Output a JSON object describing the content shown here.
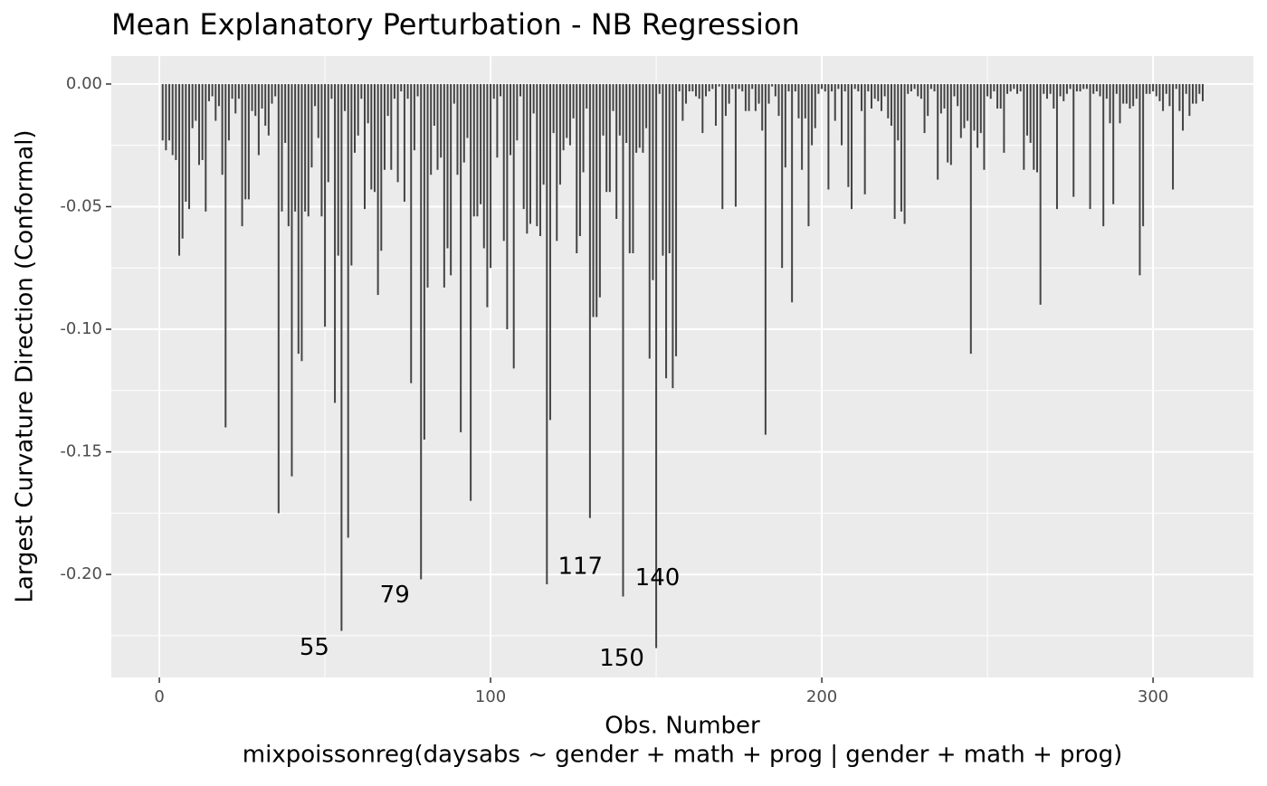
{
  "chart_data": {
    "type": "segment",
    "title": "Mean Explanatory Perturbation - NB Regression",
    "xlabel": "Obs. Number",
    "caption": "mixpoissonreg(daysabs ~ gender + math + prog | gender + math + prog)",
    "ylabel": "Largest Curvature Direction (Conformal)",
    "color": "#444444",
    "grid": true,
    "xlim": [
      -14.5,
      330.3
    ],
    "ylim": [
      -0.242,
      0.0114
    ],
    "xticks": [
      0,
      100,
      200,
      300
    ],
    "x_minor_breaks": [
      50,
      150,
      250
    ],
    "yticks": [
      {
        "value": 0,
        "label": "0.00"
      },
      {
        "value": -0.05,
        "label": "-0.05"
      },
      {
        "value": -0.1,
        "label": "-0.10"
      },
      {
        "value": -0.15,
        "label": "-0.15"
      },
      {
        "value": -0.2,
        "label": "-0.20"
      }
    ],
    "y_minor_breaks": [
      -0.025,
      -0.075,
      -0.125,
      -0.175,
      -0.225
    ],
    "annotations": [
      "55",
      "79",
      "117",
      "140",
      "150"
    ],
    "x": [
      1,
      2,
      3,
      4,
      5,
      6,
      7,
      8,
      9,
      10,
      11,
      12,
      13,
      14,
      15,
      16,
      17,
      18,
      19,
      20,
      21,
      22,
      23,
      24,
      25,
      26,
      27,
      28,
      29,
      30,
      31,
      32,
      33,
      34,
      35,
      36,
      37,
      38,
      39,
      40,
      41,
      42,
      43,
      44,
      45,
      46,
      47,
      48,
      49,
      50,
      51,
      52,
      53,
      54,
      55,
      56,
      57,
      58,
      59,
      60,
      61,
      62,
      63,
      64,
      65,
      66,
      67,
      68,
      69,
      70,
      71,
      72,
      73,
      74,
      75,
      76,
      77,
      78,
      79,
      80,
      81,
      82,
      83,
      84,
      85,
      86,
      87,
      88,
      89,
      90,
      91,
      92,
      93,
      94,
      95,
      96,
      97,
      98,
      99,
      100,
      101,
      102,
      103,
      104,
      105,
      106,
      107,
      108,
      109,
      110,
      111,
      112,
      113,
      114,
      115,
      116,
      117,
      118,
      119,
      120,
      121,
      122,
      123,
      124,
      125,
      126,
      127,
      128,
      129,
      130,
      131,
      132,
      133,
      134,
      135,
      136,
      137,
      138,
      139,
      140,
      141,
      142,
      143,
      144,
      145,
      146,
      147,
      148,
      149,
      150,
      151,
      152,
      153,
      154,
      155,
      156,
      157,
      158,
      159,
      160,
      161,
      162,
      163,
      164,
      165,
      166,
      167,
      168,
      169,
      170,
      171,
      172,
      173,
      174,
      175,
      176,
      177,
      178,
      179,
      180,
      181,
      182,
      183,
      184,
      185,
      186,
      187,
      188,
      189,
      190,
      191,
      192,
      193,
      194,
      195,
      196,
      197,
      198,
      199,
      200,
      201,
      202,
      203,
      204,
      205,
      206,
      207,
      208,
      209,
      210,
      211,
      212,
      213,
      214,
      215,
      216,
      217,
      218,
      219,
      220,
      221,
      222,
      223,
      224,
      225,
      226,
      227,
      228,
      229,
      230,
      231,
      232,
      233,
      234,
      235,
      236,
      237,
      238,
      239,
      240,
      241,
      242,
      243,
      244,
      245,
      246,
      247,
      248,
      249,
      250,
      251,
      252,
      253,
      254,
      255,
      256,
      257,
      258,
      259,
      260,
      261,
      262,
      263,
      264,
      265,
      266,
      267,
      268,
      269,
      270,
      271,
      272,
      273,
      274,
      275,
      276,
      277,
      278,
      279,
      280,
      281,
      282,
      283,
      284,
      285,
      286,
      287,
      288,
      289,
      290,
      291,
      292,
      293,
      294,
      295,
      296,
      297,
      298,
      299,
      300,
      301,
      302,
      303,
      304,
      305,
      306,
      307,
      308,
      309,
      310,
      311,
      312,
      313,
      314,
      315
    ],
    "values": [
      -0.023,
      -0.027,
      -0.023,
      -0.029,
      -0.031,
      -0.07,
      -0.063,
      -0.048,
      -0.051,
      -0.018,
      -0.015,
      -0.033,
      -0.031,
      -0.052,
      -0.007,
      -0.005,
      -0.015,
      -0.009,
      -0.037,
      -0.14,
      -0.023,
      -0.006,
      -0.012,
      -0.006,
      -0.058,
      -0.047,
      -0.047,
      -0.011,
      -0.013,
      -0.029,
      -0.01,
      -0.017,
      -0.021,
      -0.008,
      -0.005,
      -0.175,
      -0.052,
      -0.024,
      -0.058,
      -0.16,
      -0.052,
      -0.11,
      -0.113,
      -0.052,
      -0.054,
      -0.034,
      -0.009,
      -0.022,
      -0.054,
      -0.099,
      -0.04,
      -0.006,
      -0.13,
      -0.07,
      -0.223,
      -0.011,
      -0.185,
      -0.074,
      -0.028,
      -0.021,
      -0.006,
      -0.051,
      -0.016,
      -0.043,
      -0.044,
      -0.086,
      -0.068,
      -0.035,
      -0.013,
      -0.035,
      -0.006,
      -0.04,
      -0.003,
      -0.048,
      -0.006,
      -0.122,
      -0.027,
      -0.005,
      -0.202,
      -0.145,
      -0.083,
      -0.037,
      -0.017,
      -0.035,
      -0.03,
      -0.083,
      -0.067,
      -0.078,
      -0.008,
      -0.037,
      -0.142,
      -0.032,
      -0.022,
      -0.17,
      -0.054,
      -0.054,
      -0.049,
      -0.067,
      -0.091,
      -0.075,
      -0.006,
      -0.03,
      -0.005,
      -0.064,
      -0.1,
      -0.029,
      -0.116,
      -0.023,
      -0.005,
      -0.051,
      -0.061,
      -0.057,
      -0.012,
      -0.058,
      -0.062,
      -0.041,
      -0.204,
      -0.137,
      -0.02,
      -0.064,
      -0.041,
      -0.027,
      -0.022,
      -0.025,
      -0.014,
      -0.069,
      -0.062,
      -0.036,
      -0.01,
      -0.177,
      -0.095,
      -0.095,
      -0.087,
      -0.021,
      -0.044,
      -0.044,
      -0.011,
      -0.055,
      -0.021,
      -0.209,
      -0.024,
      -0.069,
      -0.069,
      -0.028,
      -0.026,
      -0.028,
      -0.018,
      -0.112,
      -0.08,
      -0.23,
      -0.004,
      -0.07,
      -0.12,
      -0.069,
      -0.124,
      -0.111,
      -0.003,
      -0.015,
      -0.008,
      -0.003,
      -0.003,
      -0.005,
      -0.006,
      -0.02,
      -0.005,
      -0.003,
      -0.002,
      -0.017,
      -0.001,
      -0.051,
      -0.013,
      -0.008,
      -0.002,
      -0.05,
      -0.002,
      -0.003,
      -0.011,
      -0.011,
      -0.002,
      -0.011,
      -0.008,
      -0.019,
      -0.143,
      -0.008,
      -0.001,
      -0.005,
      -0.013,
      -0.075,
      -0.034,
      -0.003,
      -0.089,
      -0.003,
      -0.014,
      -0.035,
      -0.014,
      -0.058,
      -0.025,
      -0.018,
      -0.004,
      -0.002,
      -0.003,
      -0.043,
      -0.003,
      -0.015,
      -0.002,
      -0.025,
      -0.003,
      -0.042,
      -0.051,
      -0.002,
      -0.003,
      -0.011,
      -0.045,
      -0.003,
      -0.01,
      -0.006,
      -0.007,
      -0.011,
      -0.005,
      -0.014,
      -0.017,
      -0.055,
      -0.023,
      -0.052,
      -0.057,
      -0.004,
      -0.003,
      -0.002,
      -0.005,
      -0.006,
      -0.02,
      -0.013,
      -0.002,
      -0.003,
      -0.039,
      -0.012,
      -0.01,
      -0.032,
      -0.033,
      -0.005,
      -0.009,
      -0.022,
      -0.018,
      -0.015,
      -0.11,
      -0.019,
      -0.026,
      -0.02,
      -0.035,
      -0.005,
      -0.006,
      -0.003,
      -0.01,
      -0.01,
      -0.028,
      -0.004,
      -0.003,
      -0.002,
      -0.004,
      -0.003,
      -0.035,
      -0.021,
      -0.024,
      -0.035,
      -0.036,
      -0.09,
      -0.004,
      -0.006,
      -0.004,
      -0.01,
      -0.051,
      -0.005,
      -0.007,
      -0.004,
      -0.002,
      -0.046,
      -0.003,
      -0.003,
      -0.002,
      -0.002,
      -0.051,
      -0.004,
      -0.003,
      -0.005,
      -0.058,
      -0.006,
      -0.016,
      -0.049,
      -0.004,
      -0.016,
      -0.008,
      -0.008,
      -0.01,
      -0.009,
      -0.006,
      -0.078,
      -0.058,
      -0.004,
      -0.004,
      -0.003,
      -0.005,
      -0.007,
      -0.011,
      -0.004,
      -0.009,
      -0.043,
      -0.002,
      -0.011,
      -0.019,
      -0.004,
      -0.013,
      -0.008,
      -0.008,
      -0.004,
      -0.007
    ]
  }
}
